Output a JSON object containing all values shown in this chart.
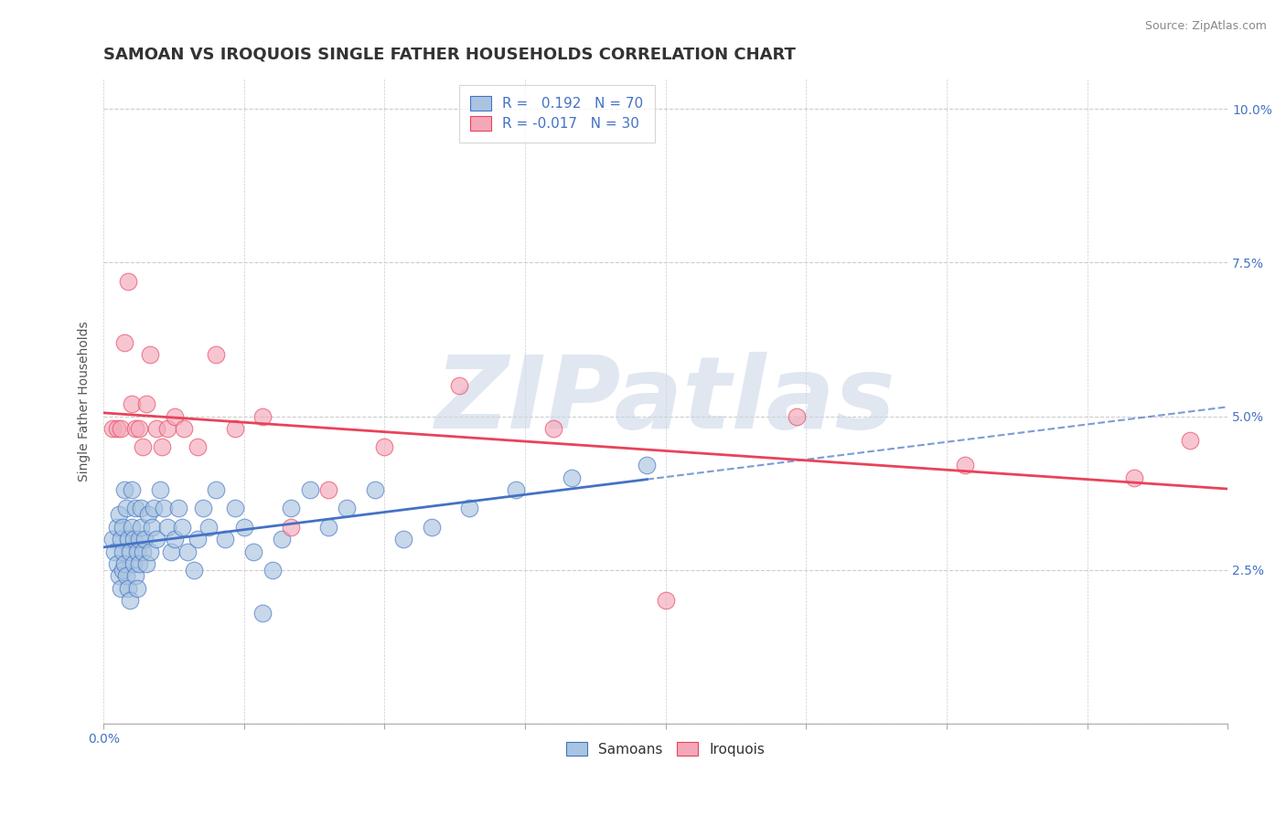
{
  "title": "SAMOAN VS IROQUOIS SINGLE FATHER HOUSEHOLDS CORRELATION CHART",
  "source": "Source: ZipAtlas.com",
  "ylabel": "Single Father Households",
  "xlim": [
    0.0,
    0.6
  ],
  "ylim": [
    0.0,
    0.105
  ],
  "xticks": [
    0.0,
    0.075,
    0.15,
    0.225,
    0.3,
    0.375,
    0.45,
    0.525,
    0.6
  ],
  "xticklabels_shown": {
    "0.0": "0.0%"
  },
  "yticks": [
    0.0,
    0.025,
    0.05,
    0.075,
    0.1
  ],
  "yticklabels": [
    "",
    "2.5%",
    "5.0%",
    "7.5%",
    "10.0%"
  ],
  "samoan_color": "#a8c4e0",
  "iroquois_color": "#f4a7b9",
  "samoan_line_color": "#4472c4",
  "iroquois_line_color": "#e8435a",
  "R_samoan": 0.192,
  "N_samoan": 70,
  "R_iroquois": -0.017,
  "N_iroquois": 30,
  "watermark": "ZIPatlas",
  "watermark_color": "#ccd8e8",
  "legend_label_samoan": "Samoans",
  "legend_label_iroquois": "Iroquois",
  "samoan_x": [
    0.005,
    0.006,
    0.007,
    0.007,
    0.008,
    0.008,
    0.009,
    0.009,
    0.01,
    0.01,
    0.01,
    0.011,
    0.011,
    0.012,
    0.012,
    0.013,
    0.013,
    0.014,
    0.014,
    0.015,
    0.015,
    0.016,
    0.016,
    0.017,
    0.017,
    0.018,
    0.018,
    0.019,
    0.019,
    0.02,
    0.02,
    0.021,
    0.022,
    0.023,
    0.024,
    0.025,
    0.026,
    0.027,
    0.028,
    0.03,
    0.032,
    0.034,
    0.036,
    0.038,
    0.04,
    0.042,
    0.045,
    0.048,
    0.05,
    0.053,
    0.056,
    0.06,
    0.065,
    0.07,
    0.075,
    0.08,
    0.085,
    0.09,
    0.095,
    0.1,
    0.11,
    0.12,
    0.13,
    0.145,
    0.16,
    0.175,
    0.195,
    0.22,
    0.25,
    0.29
  ],
  "samoan_y": [
    0.03,
    0.028,
    0.026,
    0.032,
    0.024,
    0.034,
    0.022,
    0.03,
    0.028,
    0.025,
    0.032,
    0.026,
    0.038,
    0.024,
    0.035,
    0.03,
    0.022,
    0.028,
    0.02,
    0.032,
    0.038,
    0.026,
    0.03,
    0.024,
    0.035,
    0.028,
    0.022,
    0.03,
    0.026,
    0.035,
    0.032,
    0.028,
    0.03,
    0.026,
    0.034,
    0.028,
    0.032,
    0.035,
    0.03,
    0.038,
    0.035,
    0.032,
    0.028,
    0.03,
    0.035,
    0.032,
    0.028,
    0.025,
    0.03,
    0.035,
    0.032,
    0.038,
    0.03,
    0.035,
    0.032,
    0.028,
    0.018,
    0.025,
    0.03,
    0.035,
    0.038,
    0.032,
    0.035,
    0.038,
    0.03,
    0.032,
    0.035,
    0.038,
    0.04,
    0.042
  ],
  "iroquois_x": [
    0.005,
    0.007,
    0.009,
    0.011,
    0.013,
    0.015,
    0.017,
    0.019,
    0.021,
    0.023,
    0.025,
    0.028,
    0.031,
    0.034,
    0.038,
    0.043,
    0.05,
    0.06,
    0.07,
    0.085,
    0.1,
    0.12,
    0.15,
    0.19,
    0.24,
    0.3,
    0.37,
    0.46,
    0.55,
    0.58
  ],
  "iroquois_y": [
    0.048,
    0.048,
    0.048,
    0.062,
    0.072,
    0.052,
    0.048,
    0.048,
    0.045,
    0.052,
    0.06,
    0.048,
    0.045,
    0.048,
    0.05,
    0.048,
    0.045,
    0.06,
    0.048,
    0.05,
    0.032,
    0.038,
    0.045,
    0.055,
    0.048,
    0.02,
    0.05,
    0.042,
    0.04,
    0.046
  ],
  "grid_color": "#cccccc",
  "background_color": "#ffffff",
  "title_fontsize": 13,
  "axis_fontsize": 10,
  "tick_fontsize": 10,
  "legend_fontsize": 11
}
